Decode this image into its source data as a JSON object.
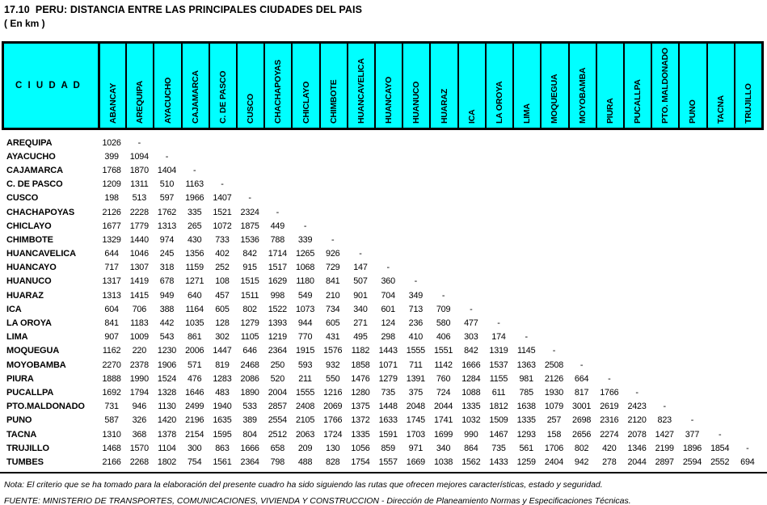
{
  "title": "17.10  PERU: DISTANCIA ENTRE LAS PRINCIPALES CIUDADES DEL PAIS",
  "subtitle": "( En km )",
  "colors": {
    "header_bg": "#00FFFF",
    "border": "#000000",
    "text": "#000000"
  },
  "table": {
    "corner_label": "C I U D A D",
    "columns": [
      "ABANCAY",
      "AREQUIPA",
      "AYACUCHO",
      "CAJAMARCA",
      "C. DE PASCO",
      "CUSCO",
      "CHACHAPOYAS",
      "CHICLAYO",
      "CHIMBOTE",
      "HUANCAVELICA",
      "HUANCAYO",
      "HUANUCO",
      "HUARAZ",
      "ICA",
      "LA OROYA",
      "LIMA",
      "MOQUEGUA",
      "MOYOBAMBA",
      "PIURA",
      "PUCALLPA",
      "PTO. MALDONADO",
      "PUNO",
      "TACNA",
      "TRUJILLO"
    ],
    "rows": [
      {
        "city": "AREQUIPA",
        "values": [
          "1026",
          "-"
        ]
      },
      {
        "city": "AYACUCHO",
        "values": [
          "399",
          "1094",
          "-"
        ]
      },
      {
        "city": "CAJAMARCA",
        "values": [
          "1768",
          "1870",
          "1404",
          "-"
        ]
      },
      {
        "city": "C. DE PASCO",
        "values": [
          "1209",
          "1311",
          "510",
          "1163",
          "-"
        ]
      },
      {
        "city": "CUSCO",
        "values": [
          "198",
          "513",
          "597",
          "1966",
          "1407",
          "-"
        ]
      },
      {
        "city": "CHACHAPOYAS",
        "values": [
          "2126",
          "2228",
          "1762",
          "335",
          "1521",
          "2324",
          "-"
        ]
      },
      {
        "city": "CHICLAYO",
        "values": [
          "1677",
          "1779",
          "1313",
          "265",
          "1072",
          "1875",
          "449",
          "-"
        ]
      },
      {
        "city": "CHIMBOTE",
        "values": [
          "1329",
          "1440",
          "974",
          "430",
          "733",
          "1536",
          "788",
          "339",
          "-"
        ]
      },
      {
        "city": "HUANCAVELICA",
        "values": [
          "644",
          "1046",
          "245",
          "1356",
          "402",
          "842",
          "1714",
          "1265",
          "926",
          "-"
        ]
      },
      {
        "city": "HUANCAYO",
        "values": [
          "717",
          "1307",
          "318",
          "1159",
          "252",
          "915",
          "1517",
          "1068",
          "729",
          "147",
          "-"
        ]
      },
      {
        "city": "HUANUCO",
        "values": [
          "1317",
          "1419",
          "678",
          "1271",
          "108",
          "1515",
          "1629",
          "1180",
          "841",
          "507",
          "360",
          "-"
        ]
      },
      {
        "city": "HUARAZ",
        "values": [
          "1313",
          "1415",
          "949",
          "640",
          "457",
          "1511",
          "998",
          "549",
          "210",
          "901",
          "704",
          "349",
          "-"
        ]
      },
      {
        "city": "ICA",
        "values": [
          "604",
          "706",
          "388",
          "1164",
          "605",
          "802",
          "1522",
          "1073",
          "734",
          "340",
          "601",
          "713",
          "709",
          "-"
        ]
      },
      {
        "city": "LA OROYA",
        "values": [
          "841",
          "1183",
          "442",
          "1035",
          "128",
          "1279",
          "1393",
          "944",
          "605",
          "271",
          "124",
          "236",
          "580",
          "477",
          "-"
        ]
      },
      {
        "city": "LIMA",
        "values": [
          "907",
          "1009",
          "543",
          "861",
          "302",
          "1105",
          "1219",
          "770",
          "431",
          "495",
          "298",
          "410",
          "406",
          "303",
          "174",
          "-"
        ]
      },
      {
        "city": "MOQUEGUA",
        "values": [
          "1162",
          "220",
          "1230",
          "2006",
          "1447",
          "646",
          "2364",
          "1915",
          "1576",
          "1182",
          "1443",
          "1555",
          "1551",
          "842",
          "1319",
          "1145",
          "-"
        ]
      },
      {
        "city": "MOYOBAMBA",
        "values": [
          "2270",
          "2378",
          "1906",
          "571",
          "819",
          "2468",
          "250",
          "593",
          "932",
          "1858",
          "1071",
          "711",
          "1142",
          "1666",
          "1537",
          "1363",
          "2508",
          "-"
        ]
      },
      {
        "city": "PIURA",
        "values": [
          "1888",
          "1990",
          "1524",
          "476",
          "1283",
          "2086",
          "520",
          "211",
          "550",
          "1476",
          "1279",
          "1391",
          "760",
          "1284",
          "1155",
          "981",
          "2126",
          "664",
          "-"
        ]
      },
      {
        "city": "PUCALLPA",
        "values": [
          "1692",
          "1794",
          "1328",
          "1646",
          "483",
          "1890",
          "2004",
          "1555",
          "1216",
          "1280",
          "735",
          "375",
          "724",
          "1088",
          "611",
          "785",
          "1930",
          "817",
          "1766",
          "-"
        ]
      },
      {
        "city": "PTO.MALDONADO",
        "values": [
          "731",
          "946",
          "1130",
          "2499",
          "1940",
          "533",
          "2857",
          "2408",
          "2069",
          "1375",
          "1448",
          "2048",
          "2044",
          "1335",
          "1812",
          "1638",
          "1079",
          "3001",
          "2619",
          "2423",
          "-"
        ]
      },
      {
        "city": "PUNO",
        "values": [
          "587",
          "326",
          "1420",
          "2196",
          "1635",
          "389",
          "2554",
          "2105",
          "1766",
          "1372",
          "1633",
          "1745",
          "1741",
          "1032",
          "1509",
          "1335",
          "257",
          "2698",
          "2316",
          "2120",
          "823",
          "-"
        ]
      },
      {
        "city": "TACNA",
        "values": [
          "1310",
          "368",
          "1378",
          "2154",
          "1595",
          "804",
          "2512",
          "2063",
          "1724",
          "1335",
          "1591",
          "1703",
          "1699",
          "990",
          "1467",
          "1293",
          "158",
          "2656",
          "2274",
          "2078",
          "1427",
          "377",
          "-"
        ]
      },
      {
        "city": "TRUJILLO",
        "values": [
          "1468",
          "1570",
          "1104",
          "300",
          "863",
          "1666",
          "658",
          "209",
          "130",
          "1056",
          "859",
          "971",
          "340",
          "864",
          "735",
          "561",
          "1706",
          "802",
          "420",
          "1346",
          "2199",
          "1896",
          "1854",
          "-"
        ]
      },
      {
        "city": "TUMBES",
        "values": [
          "2166",
          "2268",
          "1802",
          "754",
          "1561",
          "2364",
          "798",
          "488",
          "828",
          "1754",
          "1557",
          "1669",
          "1038",
          "1562",
          "1433",
          "1259",
          "2404",
          "942",
          "278",
          "2044",
          "2897",
          "2594",
          "2552",
          "694"
        ]
      }
    ]
  },
  "notes": {
    "nota": "Nota: El criterio que se ha tomado para la elaboración del presente cuadro ha sido siguiendo las rutas que ofrecen mejores características, estado y seguridad.",
    "fuente": "FUENTE: MINISTERIO DE TRANSPORTES, COMUNICACIONES, VIVIENDA Y CONSTRUCCION - Dirección de Planeamiento Normas y Especificaciones Técnicas."
  }
}
